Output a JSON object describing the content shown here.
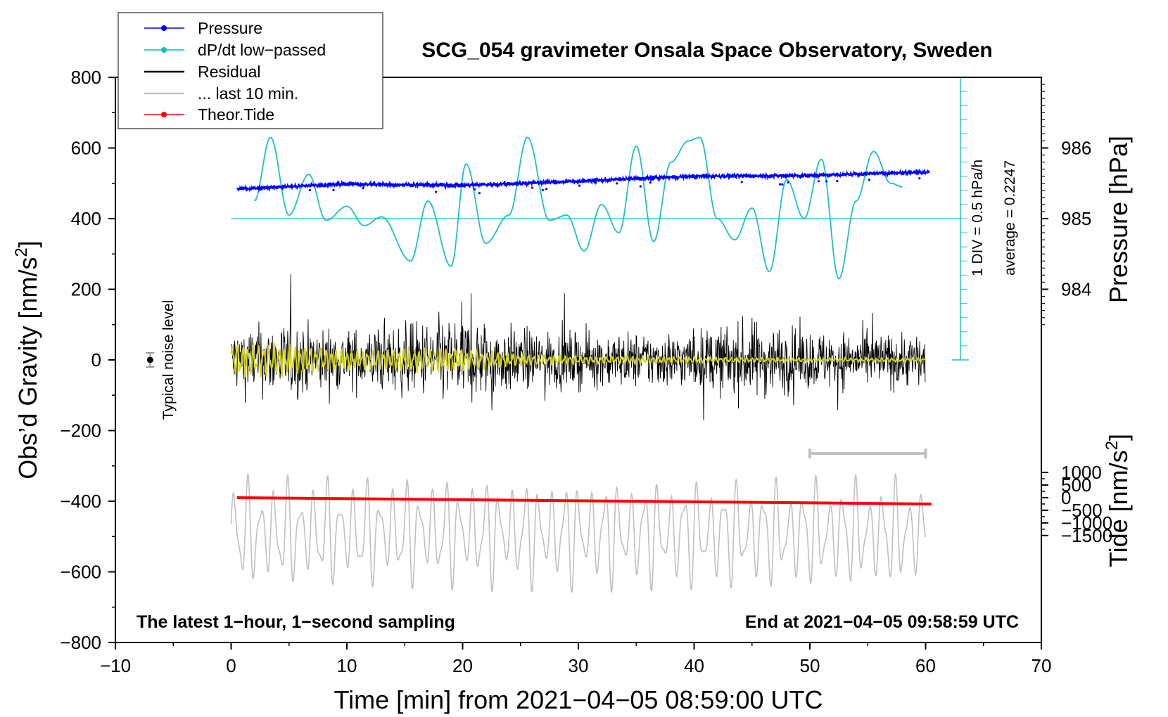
{
  "chart_data": {
    "type": "line",
    "title": "SCG_054 gravimeter Onsala Space Observatory, Sweden",
    "xlabel": "Time [min] from 2021−04−05 08:59:00 UTC",
    "ylabel_left_prefix": "Obs’d Gravity [nm/s",
    "ylabel_left_exp": "2",
    "ylabel_left_suffix": "]",
    "ylabel_right_pressure": "Pressure [hPa]",
    "ylabel_right_tide_prefix": "Tide [nm/s",
    "ylabel_right_tide_exp": "2",
    "ylabel_right_tide_suffix": "]",
    "xlim": [
      -10,
      70
    ],
    "ylim": [
      -800,
      800
    ],
    "x_ticks": [
      -10,
      0,
      10,
      20,
      30,
      40,
      50,
      60,
      70
    ],
    "x_tick_labels": [
      "−10",
      "0",
      "10",
      "20",
      "30",
      "40",
      "50",
      "60",
      "70"
    ],
    "y_ticks": [
      -800,
      -600,
      -400,
      -200,
      0,
      200,
      400,
      600,
      800
    ],
    "y_tick_labels": [
      "−800",
      "−600",
      "−400",
      "−200",
      "0",
      "200",
      "400",
      "600",
      "800"
    ],
    "pressure_axis": {
      "ticks": [
        984,
        985,
        986
      ],
      "tick_labels": [
        "984",
        "985",
        "986"
      ],
      "anchor_value": 985,
      "anchor_gravity": 400,
      "gravity_per_hpa": 200
    },
    "tide_axis": {
      "ticks": [
        1000,
        500,
        0,
        -500,
        -1000,
        -1500
      ],
      "tick_labels": [
        "1000",
        "500",
        "0",
        "−500",
        "−1000",
        "−1500"
      ],
      "gravity_offset": -390,
      "gravity_per_unit": 0.0714
    },
    "annotations": {
      "dpdt_scale": "1 DIV = 0.5 hPa/h",
      "dpdt_average": "average = 0.2247",
      "noise_label": "Typical noise level",
      "bottom_left": "The latest 1−hour, 1−second sampling",
      "bottom_right": "End at 2021−04−05 09:58:59 UTC"
    },
    "legend": {
      "position": "top-left",
      "entries": [
        {
          "label": "Pressure",
          "color": "#0000ff",
          "marker": true
        },
        {
          "label": "dP/dt low−passed",
          "color": "#00c0c0",
          "marker": true
        },
        {
          "label": "Residual",
          "color": "#000000",
          "marker": false
        },
        {
          "label": "... last 10 min.",
          "color": "#c0c0c0",
          "marker": false
        },
        {
          "label": "Theor.Tide",
          "color": "#ff0000",
          "marker": true
        }
      ]
    },
    "colors": {
      "pressure": "#0000ff",
      "dpdt": "#20c0c0",
      "residual": "#000000",
      "filtered": "#d4d420",
      "last10": "#c0c0c0",
      "tide": "#ff0000"
    },
    "dpdt_baseline": 400,
    "dpdt_div_gravity": 40,
    "series": [
      {
        "name": "dP/dt low-passed",
        "unit": "gravity-axis nm/s2",
        "x": [
          2.0,
          3.4,
          5.0,
          6.7,
          8.2,
          10.0,
          11.5,
          13.0,
          15.5,
          17.0,
          19.0,
          20.3,
          22.0,
          24.0,
          25.6,
          27.5,
          29.0,
          30.5,
          32.0,
          33.5,
          35.0,
          36.5,
          38.0,
          39.5,
          40.5,
          42.0,
          43.5,
          45.0,
          46.5,
          48.0,
          49.5,
          51.0,
          52.5,
          54.0,
          55.5,
          57.0,
          58.0
        ],
        "y": [
          450,
          630,
          410,
          525,
          395,
          435,
          380,
          405,
          280,
          450,
          265,
          555,
          330,
          410,
          630,
          395,
          410,
          308,
          440,
          360,
          605,
          335,
          560,
          620,
          630,
          400,
          340,
          430,
          250,
          510,
          400,
          568,
          230,
          450,
          590,
          500,
          490
        ]
      },
      {
        "name": "Pressure",
        "unit": "hPa (right axis)",
        "x": [
          0.5,
          10,
          20,
          30,
          40,
          50,
          60
        ],
        "y": [
          985.42,
          985.49,
          985.47,
          985.53,
          985.6,
          985.61,
          985.66
        ]
      },
      {
        "name": "Residual envelope",
        "unit": "nm/s2",
        "x": [
          0,
          5,
          10,
          15,
          20,
          25,
          30,
          35,
          40,
          45,
          50,
          55,
          60
        ],
        "y": [
          170,
          190,
          150,
          180,
          230,
          160,
          140,
          140,
          150,
          200,
          150,
          140,
          140
        ]
      },
      {
        "name": "Filtered residual envelope",
        "unit": "nm/s2",
        "x": [
          0,
          5,
          10,
          15,
          20,
          25,
          30,
          35,
          40,
          45,
          50,
          55,
          60
        ],
        "y": [
          45,
          40,
          25,
          30,
          30,
          15,
          10,
          10,
          8,
          6,
          5,
          5,
          6
        ]
      },
      {
        "name": "Theor.Tide",
        "unit": "nm/s2 (tide axis)",
        "x": [
          0.5,
          60.5
        ],
        "y": [
          0,
          -250
        ]
      },
      {
        "name": "... last 10 min.",
        "unit": "nm/s2",
        "x_range": [
          0,
          60
        ],
        "center": -490,
        "amplitude": 150,
        "bar_x": [
          50,
          60
        ],
        "bar_y": -265
      }
    ],
    "noise_level": {
      "x": -7,
      "y": 0,
      "err": 20
    }
  }
}
